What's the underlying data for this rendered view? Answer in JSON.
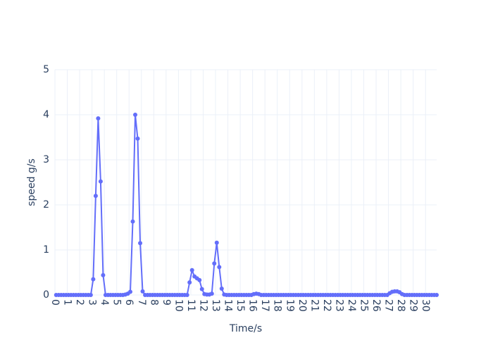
{
  "chart_data": {
    "type": "line",
    "xlabel": "Time/s",
    "ylabel": "speed g/s",
    "x": [
      0.1,
      0.3,
      0.5,
      0.7,
      0.9,
      1.1,
      1.3,
      1.5,
      1.7,
      1.9,
      2.1,
      2.3,
      2.5,
      2.7,
      2.9,
      3.1,
      3.3,
      3.5,
      3.7,
      3.9,
      4.1,
      4.3,
      4.5,
      4.7,
      4.9,
      5.1,
      5.3,
      5.5,
      5.7,
      5.9,
      6.1,
      6.3,
      6.5,
      6.7,
      6.9,
      7.1,
      7.3,
      7.5,
      7.7,
      7.9,
      8.1,
      8.3,
      8.5,
      8.7,
      8.9,
      9.1,
      9.3,
      9.5,
      9.7,
      9.9,
      10.1,
      10.3,
      10.5,
      10.7,
      10.9,
      11.1,
      11.3,
      11.5,
      11.7,
      11.9,
      12.1,
      12.3,
      12.5,
      12.7,
      12.9,
      13.1,
      13.3,
      13.5,
      13.7,
      13.9,
      14.1,
      14.3,
      14.5,
      14.7,
      14.9,
      15.1,
      15.3,
      15.5,
      15.7,
      15.9,
      16.1,
      16.3,
      16.5,
      16.7,
      16.9,
      17.1,
      17.3,
      17.5,
      17.7,
      17.9,
      18.1,
      18.3,
      18.5,
      18.7,
      18.9,
      19.1,
      19.3,
      19.5,
      19.7,
      19.9,
      20.1,
      20.3,
      20.5,
      20.7,
      20.9,
      21.1,
      21.3,
      21.5,
      21.7,
      21.9,
      22.1,
      22.3,
      22.5,
      22.7,
      22.9,
      23.1,
      23.3,
      23.5,
      23.7,
      23.9,
      24.1,
      24.3,
      24.5,
      24.7,
      24.9,
      25.1,
      25.3,
      25.5,
      25.7,
      25.9,
      26.1,
      26.3,
      26.5,
      26.7,
      26.9,
      27.1,
      27.3,
      27.5,
      27.7,
      27.9,
      28.1,
      28.3,
      28.5,
      28.7,
      28.9,
      29.1,
      29.3,
      29.5,
      29.7,
      29.9,
      30.1,
      30.3,
      30.5,
      30.7,
      30.9
    ],
    "series": [
      {
        "color": "#636efa",
        "values": [
          0,
          0,
          0,
          0,
          0,
          0,
          0,
          0,
          0,
          0,
          0,
          0,
          0,
          0,
          0,
          0.35,
          2.2,
          3.92,
          2.52,
          0.44,
          0,
          0,
          0,
          0,
          0,
          0,
          0,
          0,
          0.01,
          0.03,
          0.07,
          1.63,
          4,
          3.47,
          1.15,
          0.08,
          0,
          0,
          0,
          0,
          0,
          0,
          0,
          0,
          0,
          0,
          0,
          0,
          0,
          0,
          0,
          0,
          0,
          0,
          0.28,
          0.55,
          0.41,
          0.37,
          0.33,
          0.13,
          0.02,
          0.01,
          0.01,
          0.03,
          0.7,
          1.16,
          0.62,
          0.14,
          0.01,
          0,
          0,
          0,
          0,
          0,
          0,
          0,
          0,
          0,
          0,
          0,
          0.02,
          0.03,
          0.02,
          0,
          0,
          0,
          0,
          0,
          0,
          0,
          0,
          0,
          0,
          0,
          0,
          0,
          0,
          0,
          0,
          0,
          0,
          0,
          0,
          0,
          0,
          0,
          0,
          0,
          0,
          0,
          0,
          0,
          0,
          0,
          0,
          0,
          0,
          0,
          0,
          0,
          0,
          0,
          0,
          0,
          0,
          0,
          0,
          0,
          0,
          0,
          0,
          0,
          0,
          0,
          0,
          0.04,
          0.07,
          0.08,
          0.08,
          0.06,
          0.02,
          0,
          0,
          0,
          0,
          0,
          0,
          0,
          0,
          0,
          0,
          0,
          0,
          0,
          0
        ]
      }
    ],
    "xlim": [
      0,
      30.9
    ],
    "xticks": [
      0,
      1,
      2,
      3,
      4,
      5,
      6,
      7,
      8,
      9,
      10,
      11,
      12,
      13,
      14,
      15,
      16,
      17,
      18,
      19,
      20,
      21,
      22,
      23,
      24,
      25,
      26,
      27,
      28,
      29,
      30
    ],
    "ylim": [
      0,
      5
    ],
    "yticks": [
      0,
      1,
      2,
      3,
      4,
      5
    ],
    "grid": true
  }
}
